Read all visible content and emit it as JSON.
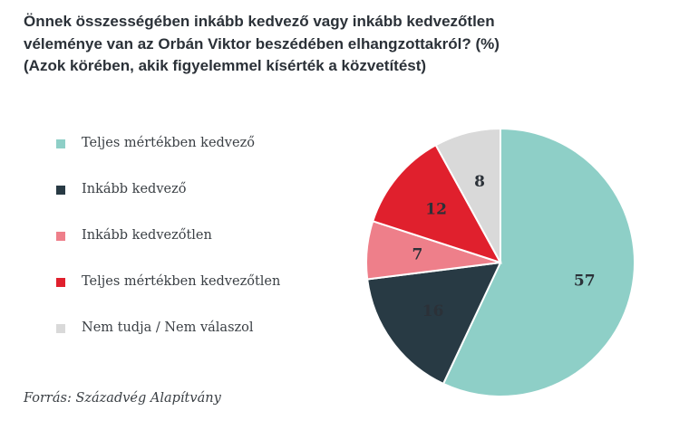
{
  "title_lines": [
    "Önnek összességében inkább kedvező vagy inkább kedvezőtlen",
    "véleménye van az Orbán Viktor beszédében elhangzottakról? (%)",
    "(Azok körében, akik figyelemmel kísérték a közvetítést)"
  ],
  "source": "Forrás: Századvég Alapítvány",
  "chart_data": {
    "type": "pie",
    "title": "Önnek összességében inkább kedvező vagy inkább kedvezőtlen véleménye van az Orbán Viktor beszédében elhangzottakról? (%) (Azok körében, akik figyelemmel kísérték a közvetítést)",
    "slices": [
      {
        "label": "Teljes mértékben kedvező",
        "value": 57,
        "display": "57",
        "color": "#8ecfc7"
      },
      {
        "label": "Inkább kedvező",
        "value": 16,
        "display": "16",
        "color": "#283a44"
      },
      {
        "label": "Inkább kedvezőtlen",
        "value": 7,
        "display": "7",
        "color": "#ee7f8a"
      },
      {
        "label": "Teljes mértékben kedvezőtlen",
        "value": 12,
        "display": "12",
        "color": "#e0202d"
      },
      {
        "label": "Nem tudja / Nem válaszol",
        "value": 8,
        "display": "8",
        "color": "#d9d9d9"
      }
    ],
    "start": "12 o'clock",
    "direction": "clockwise",
    "legend_position": "left"
  }
}
